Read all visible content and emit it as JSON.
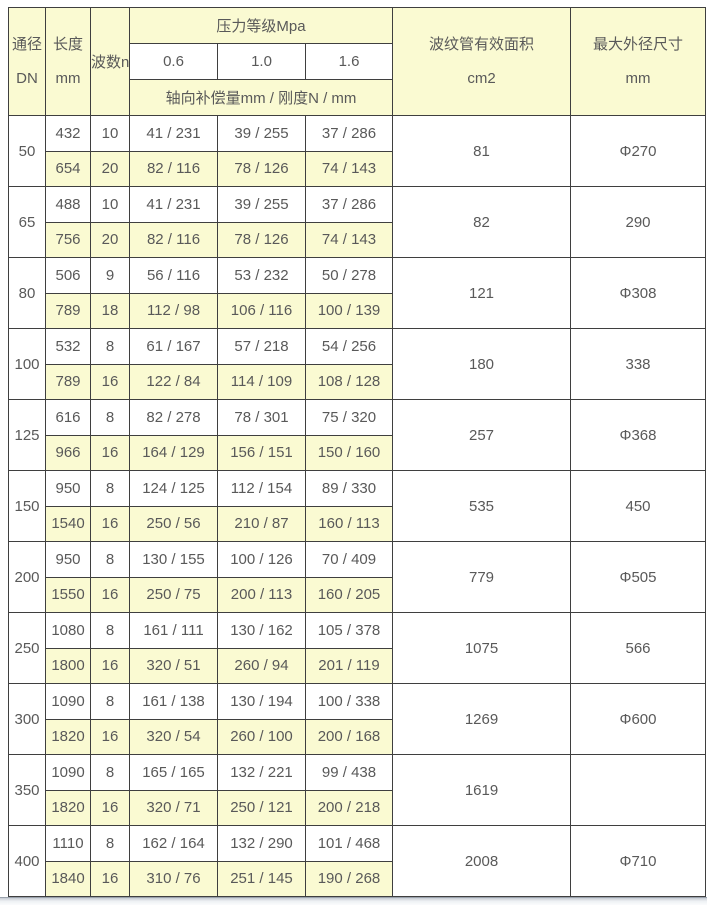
{
  "colors": {
    "cell_yellow": "#fafad2",
    "border": "#3f3f3f",
    "text": "#595959"
  },
  "table": {
    "header": {
      "col_dn": [
        "通径",
        "DN"
      ],
      "col_length": [
        "长度",
        "mm"
      ],
      "col_waves": "波数n",
      "pressure_group": "压力等级Mpa",
      "pressure_levels": [
        "0.6",
        "1.0",
        "1.6"
      ],
      "pressure_sub": "轴向补偿量mm / 刚度N / mm",
      "col_area": [
        "波纹管有效面积",
        "cm2"
      ],
      "col_maxod": [
        "最大外径尺寸",
        "mm"
      ]
    },
    "rows": [
      {
        "dn": "50",
        "area": "81",
        "max_od": "Φ270",
        "sub": [
          {
            "length": "432",
            "waves": "10",
            "p06": "41 / 231",
            "p10": "39 / 255",
            "p16": "37 / 286"
          },
          {
            "length": "654",
            "waves": "20",
            "p06": "82 / 116",
            "p10": "78 / 126",
            "p16": "74 / 143"
          }
        ]
      },
      {
        "dn": "65",
        "area": "82",
        "max_od": "290",
        "sub": [
          {
            "length": "488",
            "waves": "10",
            "p06": "41 / 231",
            "p10": "39 / 255",
            "p16": "37 / 286"
          },
          {
            "length": "756",
            "waves": "20",
            "p06": "82 / 116",
            "p10": "78 / 126",
            "p16": "74 / 143"
          }
        ]
      },
      {
        "dn": "80",
        "area": "121",
        "max_od": "Φ308",
        "sub": [
          {
            "length": "506",
            "waves": "9",
            "p06": "56 / 116",
            "p10": "53 / 232",
            "p16": "50 / 278"
          },
          {
            "length": "789",
            "waves": "18",
            "p06": "112 / 98",
            "p10": "106 / 116",
            "p16": "100 / 139"
          }
        ]
      },
      {
        "dn": "100",
        "area": "180",
        "max_od": "338",
        "sub": [
          {
            "length": "532",
            "waves": "8",
            "p06": "61 / 167",
            "p10": "57 / 218",
            "p16": "54 / 256"
          },
          {
            "length": "789",
            "waves": "16",
            "p06": "122 / 84",
            "p10": "114 / 109",
            "p16": "108 / 128"
          }
        ]
      },
      {
        "dn": "125",
        "area": "257",
        "max_od": "Φ368",
        "sub": [
          {
            "length": "616",
            "waves": "8",
            "p06": "82 / 278",
            "p10": "78 / 301",
            "p16": "75 / 320"
          },
          {
            "length": "966",
            "waves": "16",
            "p06": "164 / 129",
            "p10": "156 / 151",
            "p16": "150 / 160"
          }
        ]
      },
      {
        "dn": "150",
        "area": "535",
        "max_od": "450",
        "sub": [
          {
            "length": "950",
            "waves": "8",
            "p06": "124 / 125",
            "p10": "112 / 154",
            "p16": "89 / 330"
          },
          {
            "length": "1540",
            "waves": "16",
            "p06": "250 / 56",
            "p10": "210 / 87",
            "p16": "160 / 113"
          }
        ]
      },
      {
        "dn": "200",
        "area": "779",
        "max_od": "Φ505",
        "sub": [
          {
            "length": "950",
            "waves": "8",
            "p06": "130 / 155",
            "p10": "100 / 126",
            "p16": "70 / 409"
          },
          {
            "length": "1550",
            "waves": "16",
            "p06": "250 / 75",
            "p10": "200 / 113",
            "p16": "160 / 205"
          }
        ]
      },
      {
        "dn": "250",
        "area": "1075",
        "max_od": "566",
        "sub": [
          {
            "length": "1080",
            "waves": "8",
            "p06": "161 / 111",
            "p10": "130 / 162",
            "p16": "105 / 378"
          },
          {
            "length": "1800",
            "waves": "16",
            "p06": "320 / 51",
            "p10": "260 / 94",
            "p16": "201 / 119"
          }
        ]
      },
      {
        "dn": "300",
        "area": "1269",
        "max_od": "Φ600",
        "sub": [
          {
            "length": "1090",
            "waves": "8",
            "p06": "161 / 138",
            "p10": "130 / 194",
            "p16": "100 / 338"
          },
          {
            "length": "1820",
            "waves": "16",
            "p06": "320 / 54",
            "p10": "260 / 100",
            "p16": "200 / 168"
          }
        ]
      },
      {
        "dn": "350",
        "area": "1619",
        "max_od": "",
        "sub": [
          {
            "length": "1090",
            "waves": "8",
            "p06": "165 / 165",
            "p10": "132 / 221",
            "p16": "99 / 438"
          },
          {
            "length": "1820",
            "waves": "16",
            "p06": "320 / 71",
            "p10": "250 / 121",
            "p16": "200 / 218"
          }
        ]
      },
      {
        "dn": "400",
        "area": "2008",
        "max_od": "Φ710",
        "sub": [
          {
            "length": "1110",
            "waves": "8",
            "p06": "162 / 164",
            "p10": "132 / 290",
            "p16": "101 / 468"
          },
          {
            "length": "1840",
            "waves": "16",
            "p06": "310 / 76",
            "p10": "251 / 145",
            "p16": "190 / 268"
          }
        ]
      }
    ]
  }
}
